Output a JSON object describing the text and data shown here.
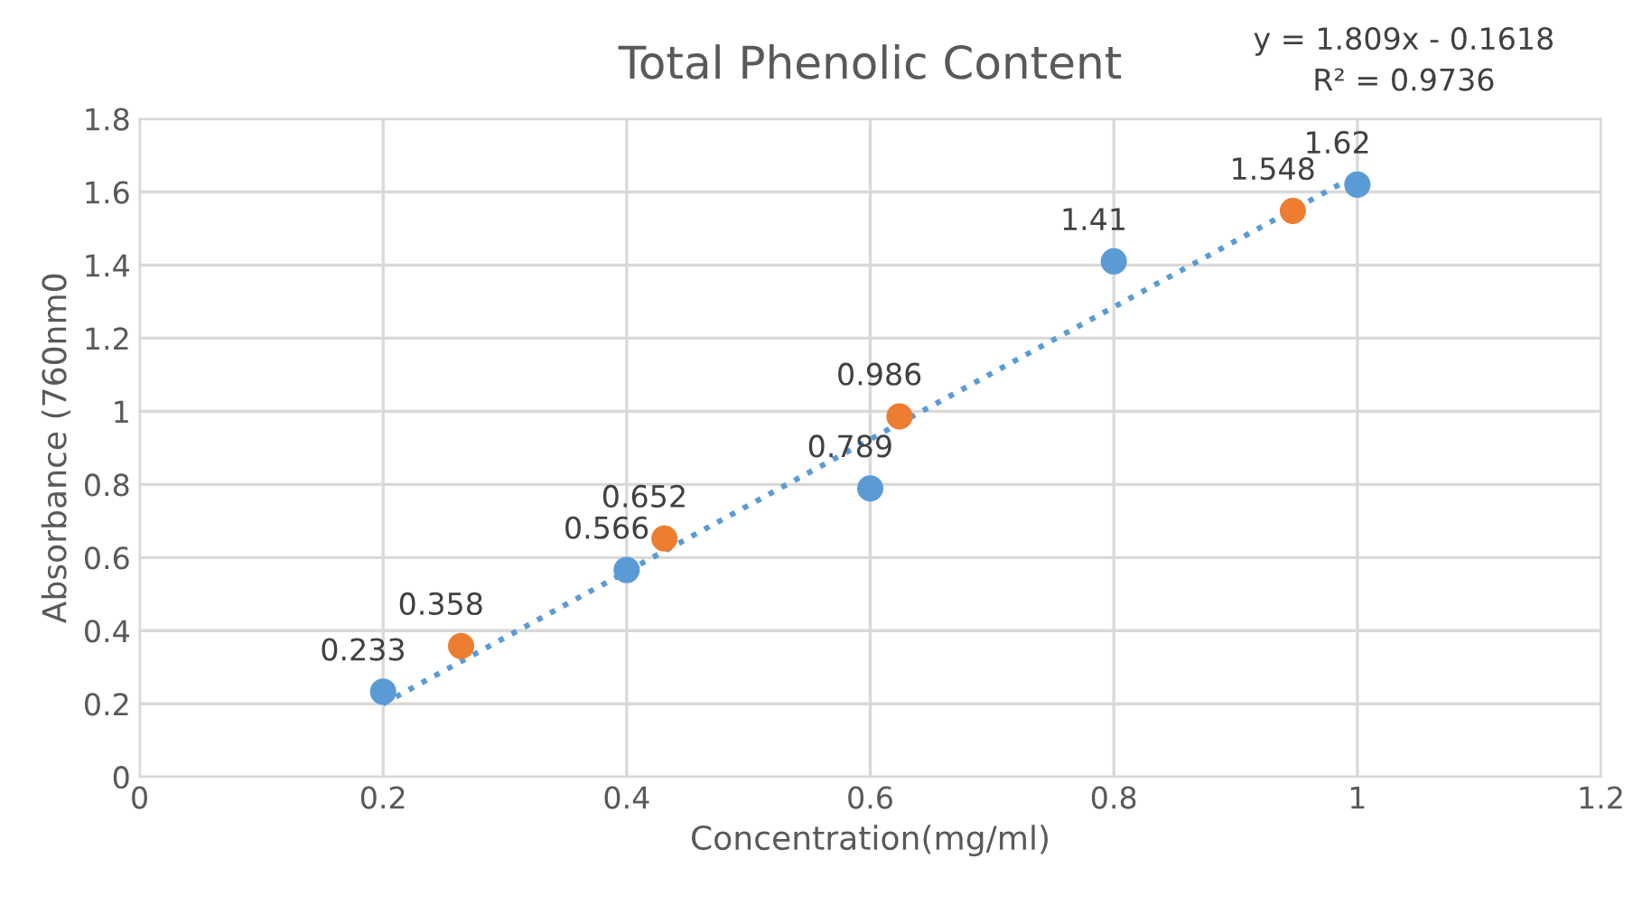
{
  "chart_data": {
    "type": "scatter",
    "title": "Total Phenolic Content",
    "xlabel": "Concentration(mg/ml)",
    "ylabel": "Absorbance (760nm0",
    "annotations": [
      "y = 1.809x - 0.1618",
      "R² = 0.9736"
    ],
    "series": [
      {
        "color": "#5b9bd5",
        "x": [
          0.2,
          0.4,
          0.6,
          0.8,
          1.0
        ],
        "values": [
          0.233,
          0.566,
          0.789,
          1.41,
          1.62
        ],
        "value_labels": [
          "0.233",
          "0.566",
          "0.789",
          "1.41",
          "1.62"
        ]
      },
      {
        "color": "#ed7d31",
        "x": [
          0.264,
          0.431,
          0.624,
          0.947
        ],
        "values": [
          0.358,
          0.652,
          0.986,
          1.548
        ],
        "value_labels": [
          "0.358",
          "0.652",
          "0.986",
          "1.548"
        ]
      },
      {
        "type": "line",
        "color": "#5b9bd5",
        "line_style": "dotted",
        "marker": "none",
        "x": [
          0.2,
          1.0
        ],
        "values": [
          0.2,
          1.647
        ]
      }
    ],
    "marker": "circle",
    "grid": true,
    "xlim": [
      0,
      1.2
    ],
    "xticks": [
      0,
      0.2,
      0.4,
      0.6,
      0.8,
      1,
      1.2
    ],
    "ylim": [
      0,
      1.8
    ],
    "yticks": [
      0,
      0.2,
      0.4,
      0.6,
      0.8,
      1,
      1.2,
      1.4,
      1.6,
      1.8
    ]
  }
}
